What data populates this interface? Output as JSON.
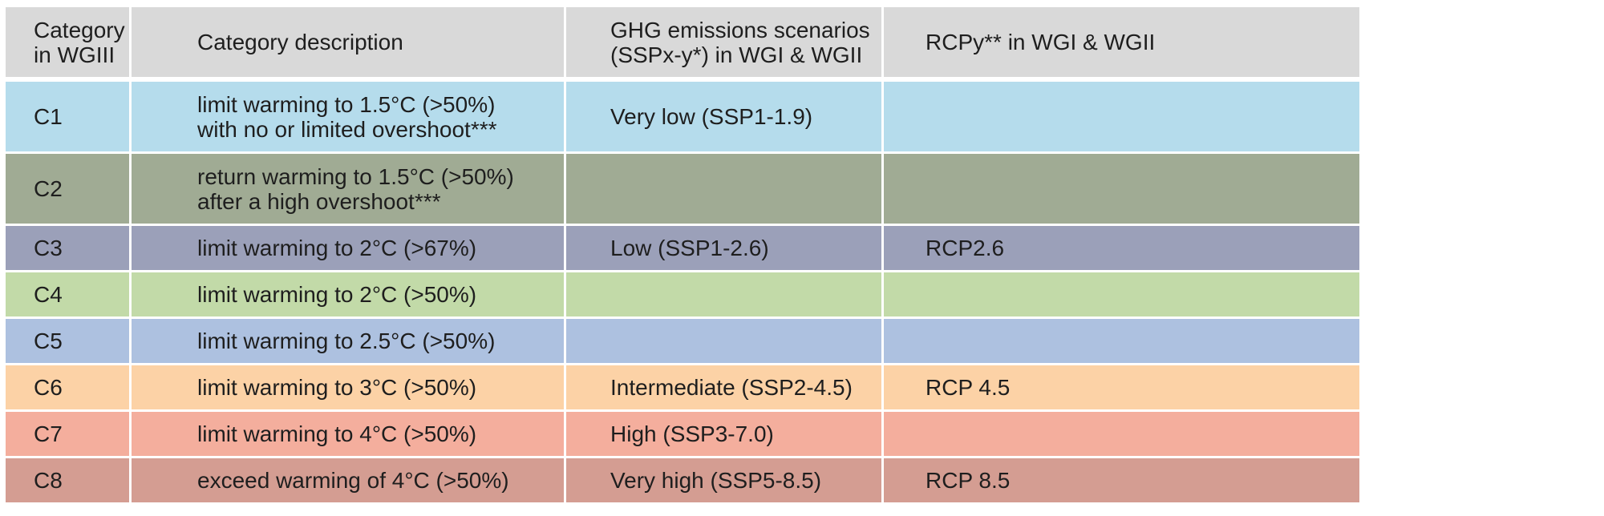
{
  "table": {
    "headers": {
      "category": "Category\nin WGIII",
      "description": "Category description",
      "ghg": "GHG emissions scenarios\n(SSPx-y*) in WGI & WGII",
      "rcp": "RCPy** in WGI & WGII"
    },
    "rows": [
      {
        "code": "C1",
        "description": "limit warming to 1.5°C (>50%)\nwith no or limited overshoot***",
        "ghg": "Very low (SSP1-1.9)",
        "rcp": "",
        "color": "#b5dcec"
      },
      {
        "code": "C2",
        "description": "return warming to 1.5°C (>50%)\nafter a high overshoot***",
        "ghg": "",
        "rcp": "",
        "color": "#a0ab94"
      },
      {
        "code": "C3",
        "description": "limit warming to 2°C (>67%)",
        "ghg": "Low (SSP1-2.6)",
        "rcp": "RCP2.6",
        "color": "#9ba0b9"
      },
      {
        "code": "C4",
        "description": "limit warming to 2°C (>50%)",
        "ghg": "",
        "rcp": "",
        "color": "#c2daa8"
      },
      {
        "code": "C5",
        "description": "limit warming to 2.5°C (>50%)",
        "ghg": "",
        "rcp": "",
        "color": "#adc1e0"
      },
      {
        "code": "C6",
        "description": "limit warming to 3°C (>50%)",
        "ghg": "Intermediate (SSP2-4.5)",
        "rcp": "RCP 4.5",
        "color": "#fcd2a6"
      },
      {
        "code": "C7",
        "description": "limit warming to 4°C (>50%)",
        "ghg": "High (SSP3-7.0)",
        "rcp": "",
        "color": "#f4ae9d"
      },
      {
        "code": "C8",
        "description": "exceed warming of 4°C (>50%)",
        "ghg": "Very high (SSP5-8.5)",
        "rcp": "RCP 8.5",
        "color": "#d49d92"
      }
    ]
  }
}
